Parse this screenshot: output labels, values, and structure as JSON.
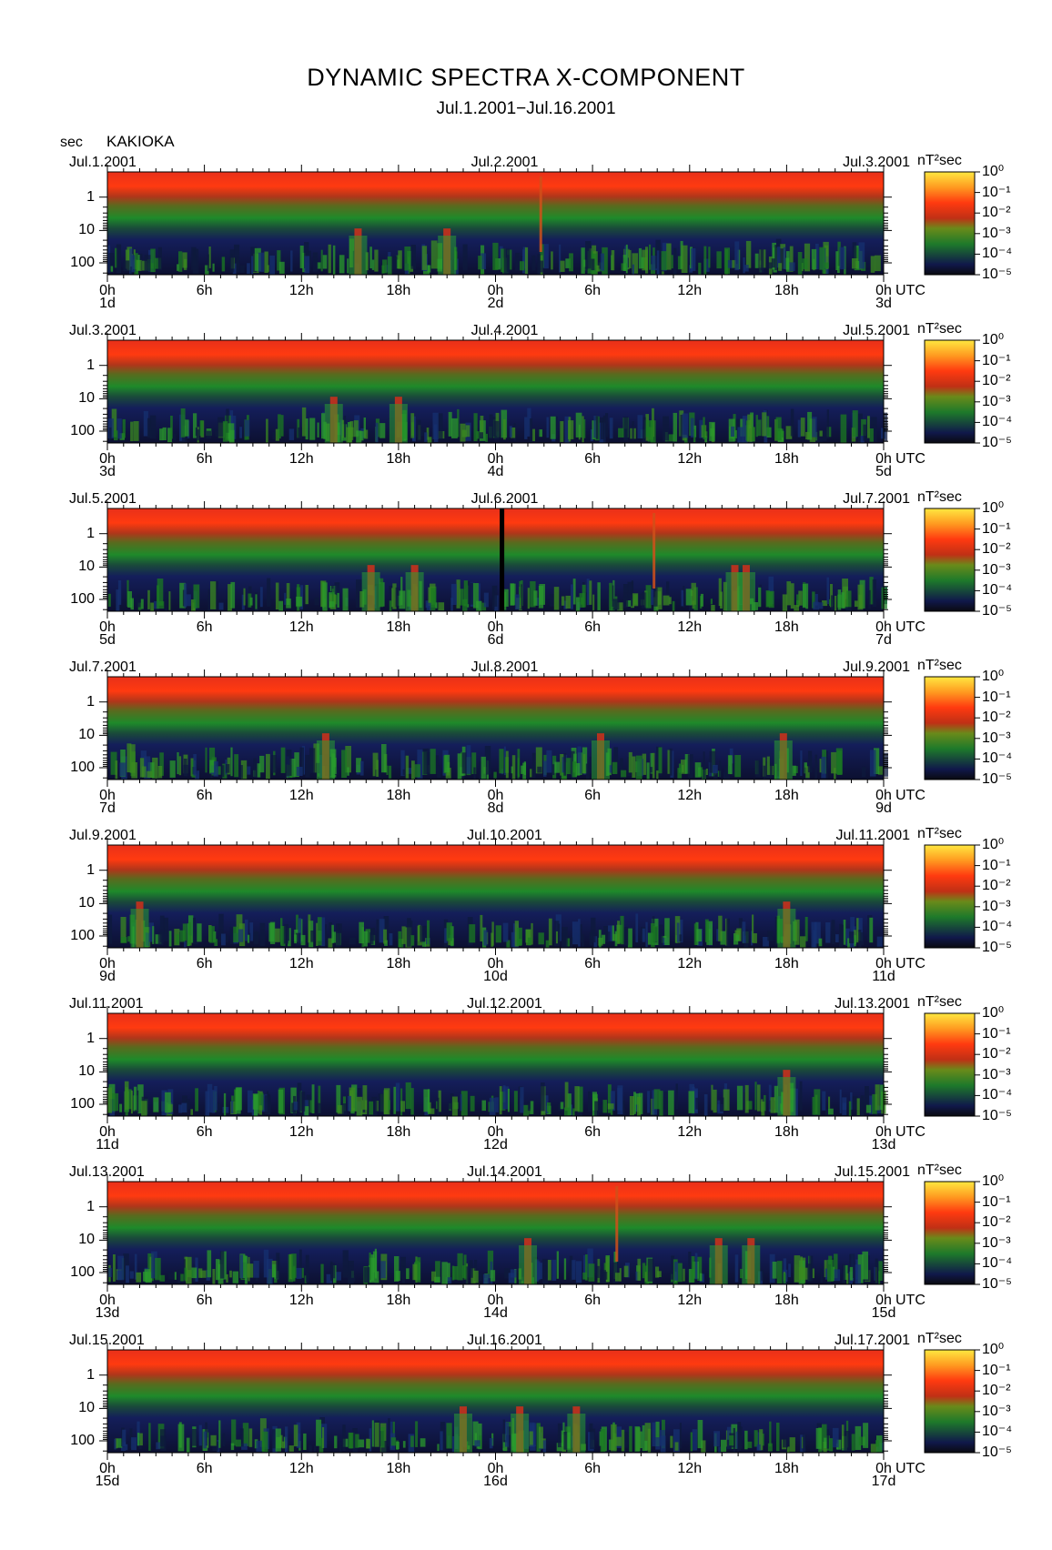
{
  "title": "DYNAMIC SPECTRA X-COMPONENT",
  "subtitle": "Jul.1.2001−Jul.16.2001",
  "y_unit_label": "sec",
  "station": "KAKIOKA",
  "colorbar": {
    "unit": "nT²sec",
    "labels": [
      "10⁰",
      "10⁻¹",
      "10⁻²",
      "10⁻³",
      "10⁻⁴",
      "10⁻⁵"
    ]
  },
  "x_tick_labels": [
    "0h",
    "6h",
    "12h",
    "18h",
    "0h",
    "6h",
    "12h",
    "18h",
    "0h"
  ],
  "x_unit": "UTC",
  "y_tick_labels": [
    "1",
    "10",
    "100"
  ],
  "chart_data": {
    "type": "heatmap",
    "title": "DYNAMIC SPECTRA X-COMPONENT",
    "subtitle": "Jul.1.2001−Jul.16.2001",
    "ylabel": "sec",
    "ylog": true,
    "y_ticks": [
      1,
      10,
      100
    ],
    "x_ticks": [
      "0h",
      "6h",
      "12h",
      "18h",
      "0h",
      "6h",
      "12h",
      "18h",
      "0h"
    ],
    "colorbar_unit": "nT²sec",
    "colorbar_range": [
      1e-05,
      1
    ],
    "colorbar_scale": "log",
    "panels": [
      {
        "date_left": "Jul.1.2001",
        "date_mid": "Jul.2.2001",
        "date_right": "Jul.3.2001",
        "day_labels": [
          "1d",
          "2d",
          "3d"
        ],
        "events": [
          {
            "hour": 15.5,
            "kind": "low-freq burst"
          },
          {
            "hour": 21.0,
            "kind": "low-freq burst"
          },
          {
            "hour": 26.8,
            "kind": "vertical streak"
          }
        ],
        "data_gaps": []
      },
      {
        "date_left": "Jul.3.2001",
        "date_mid": "Jul.4.2001",
        "date_right": "Jul.5.2001",
        "day_labels": [
          "3d",
          "4d",
          "5d"
        ],
        "events": [
          {
            "hour": 14.0,
            "kind": "low-freq burst"
          },
          {
            "hour": 18.0,
            "kind": "low-freq burst"
          }
        ],
        "data_gaps": []
      },
      {
        "date_left": "Jul.5.2001",
        "date_mid": "Jul.6.2001",
        "date_right": "Jul.7.2001",
        "day_labels": [
          "5d",
          "6d",
          "7d"
        ],
        "events": [
          {
            "hour": 16.3,
            "kind": "low-freq burst"
          },
          {
            "hour": 19.0,
            "kind": "low-freq burst"
          },
          {
            "hour": 33.8,
            "kind": "vertical streak"
          },
          {
            "hour": 38.8,
            "kind": "low-freq burst"
          },
          {
            "hour": 39.5,
            "kind": "low-freq burst"
          }
        ],
        "data_gaps": [
          {
            "hour": 24.4
          }
        ]
      },
      {
        "date_left": "Jul.7.2001",
        "date_mid": "Jul.8.2001",
        "date_right": "Jul.9.2001",
        "day_labels": [
          "7d",
          "8d",
          "9d"
        ],
        "events": [
          {
            "hour": 13.5,
            "kind": "low-freq burst"
          },
          {
            "hour": 30.5,
            "kind": "low-freq burst"
          },
          {
            "hour": 41.8,
            "kind": "low-freq burst"
          }
        ],
        "data_gaps": []
      },
      {
        "date_left": "Jul.9.2001",
        "date_mid": "Jul.10.2001",
        "date_right": "Jul.11.2001",
        "day_labels": [
          "9d",
          "10d",
          "11d"
        ],
        "events": [
          {
            "hour": 2.0,
            "kind": "low-freq burst"
          },
          {
            "hour": 42.0,
            "kind": "low-freq burst"
          }
        ],
        "data_gaps": []
      },
      {
        "date_left": "Jul.11.2001",
        "date_mid": "Jul.12.2001",
        "date_right": "Jul.13.2001",
        "day_labels": [
          "11d",
          "12d",
          "13d"
        ],
        "events": [
          {
            "hour": 42.0,
            "kind": "low-freq burst"
          }
        ],
        "data_gaps": []
      },
      {
        "date_left": "Jul.13.2001",
        "date_mid": "Jul.14.2001",
        "date_right": "Jul.15.2001",
        "day_labels": [
          "13d",
          "14d",
          "15d"
        ],
        "events": [
          {
            "hour": 26.0,
            "kind": "low-freq burst"
          },
          {
            "hour": 31.5,
            "kind": "vertical streak"
          },
          {
            "hour": 37.8,
            "kind": "low-freq burst"
          },
          {
            "hour": 39.8,
            "kind": "low-freq burst"
          }
        ],
        "data_gaps": []
      },
      {
        "date_left": "Jul.15.2001",
        "date_mid": "Jul.16.2001",
        "date_right": "Jul.17.2001",
        "day_labels": [
          "15d",
          "16d",
          "17d"
        ],
        "events": [
          {
            "hour": 22.0,
            "kind": "low-freq burst"
          },
          {
            "hour": 25.5,
            "kind": "low-freq burst"
          },
          {
            "hour": 29.0,
            "kind": "low-freq burst"
          }
        ],
        "data_gaps": []
      }
    ]
  }
}
